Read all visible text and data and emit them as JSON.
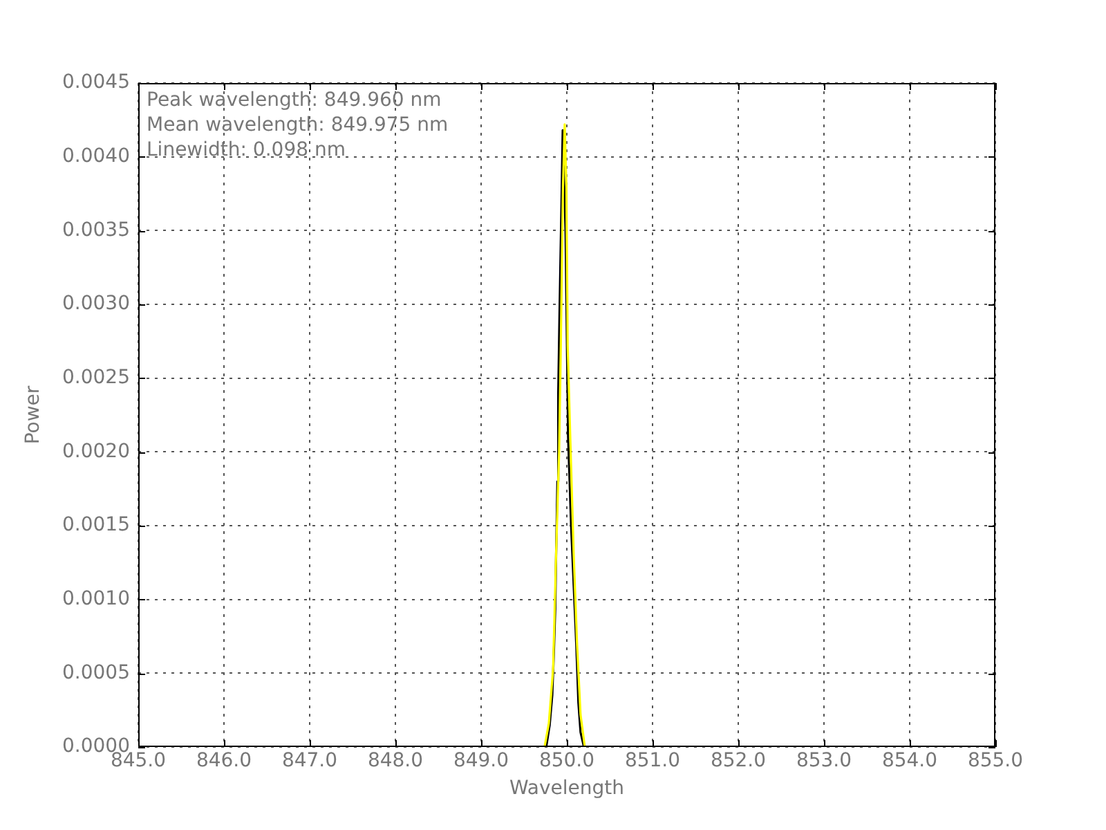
{
  "chart_data": {
    "type": "line",
    "xlabel": "Wavelength",
    "ylabel": "Power",
    "annotations": [
      "Peak wavelength: 849.960 nm",
      "Mean wavelength: 849.975 nm",
      "Linewidth: 0.098 nm"
    ],
    "xlim": [
      845,
      855
    ],
    "xticks": [
      {
        "value": 845,
        "label": "845.0"
      },
      {
        "value": 846,
        "label": "846.0"
      },
      {
        "value": 847,
        "label": "847.0"
      },
      {
        "value": 848,
        "label": "848.0"
      },
      {
        "value": 849,
        "label": "849.0"
      },
      {
        "value": 850,
        "label": "850.0"
      },
      {
        "value": 851,
        "label": "851.0"
      },
      {
        "value": 852,
        "label": "852.0"
      },
      {
        "value": 853,
        "label": "853.0"
      },
      {
        "value": 854,
        "label": "854.0"
      },
      {
        "value": 855,
        "label": "855.0"
      }
    ],
    "ylim": [
      0,
      0.0045
    ],
    "yticks": [
      {
        "value": 0,
        "label": "0.0000"
      },
      {
        "value": 0.0005,
        "label": "0.0005"
      },
      {
        "value": 0.001,
        "label": "0.0010"
      },
      {
        "value": 0.0015,
        "label": "0.0015"
      },
      {
        "value": 0.002,
        "label": "0.0020"
      },
      {
        "value": 0.0025,
        "label": "0.0025"
      },
      {
        "value": 0.003,
        "label": "0.0030"
      },
      {
        "value": 0.0035,
        "label": "0.0035"
      },
      {
        "value": 0.004,
        "label": "0.0040"
      },
      {
        "value": 0.0045,
        "label": "0.0045"
      }
    ],
    "grid": true,
    "marker": "none",
    "series": [
      {
        "color": "#000000",
        "x": [
          849.7,
          849.76,
          849.8,
          849.83,
          849.85,
          849.865,
          849.875,
          849.89,
          849.9,
          849.915,
          849.935,
          849.952,
          849.985,
          850.015,
          850.05,
          850.08,
          850.11,
          850.135,
          850.16,
          850.2,
          850.26
        ],
        "values": [
          0,
          0,
          0.00015,
          0.00035,
          0.00066,
          0.00094,
          0.0013,
          0.0018,
          0.0024,
          0.00295,
          0.0036,
          0.00418,
          0.0035,
          0.0021,
          0.0015,
          0.0011,
          0.0007,
          0.0003,
          0.0001,
          0,
          0
        ]
      },
      {
        "color": "#ffff00",
        "x": [
          849.68,
          849.74,
          849.79,
          849.84,
          849.875,
          849.91,
          849.93,
          849.955,
          849.975,
          849.995,
          850.01,
          850.04,
          850.08,
          850.12,
          850.16,
          850.21,
          850.26
        ],
        "values": [
          0,
          0,
          0.00016,
          0.00053,
          0.00131,
          0.002,
          0.00272,
          0.0038,
          0.00422,
          0.0038,
          0.00272,
          0.0021,
          0.00131,
          0.00069,
          0.00022,
          0,
          0
        ]
      }
    ]
  }
}
